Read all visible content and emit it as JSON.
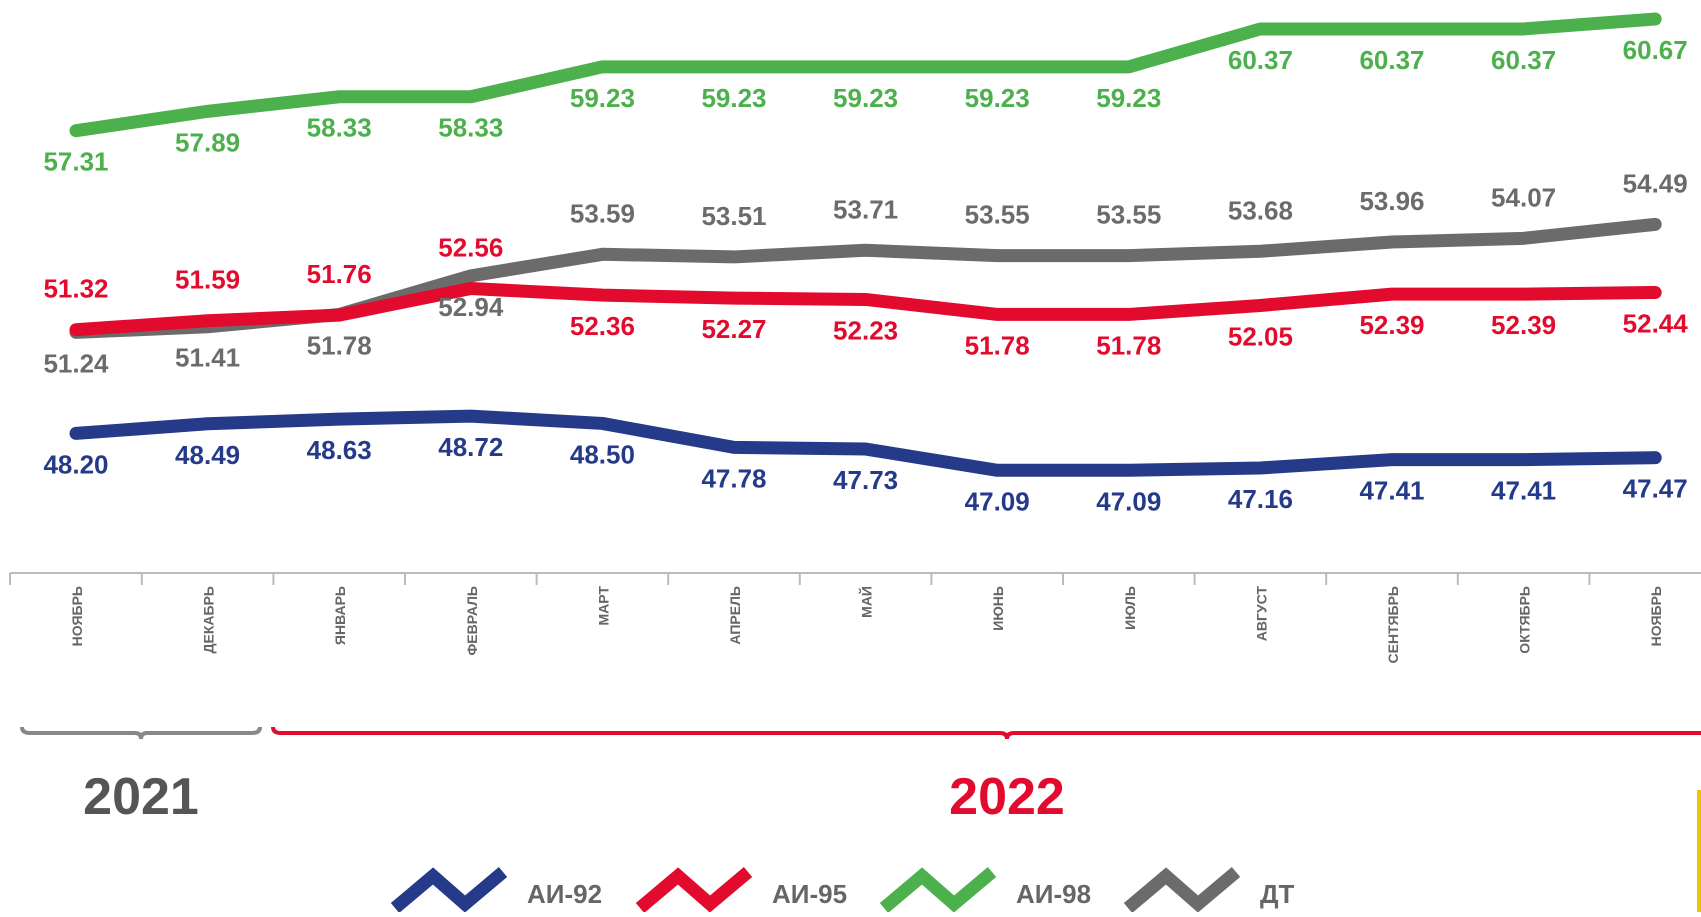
{
  "chart_data": {
    "type": "line",
    "categories": [
      "НОЯБРЬ",
      "ДЕКАБРЬ",
      "ЯНВАРЬ",
      "ФЕВРАЛЬ",
      "МАРТ",
      "АПРЕЛЬ",
      "МАЙ",
      "ИЮНЬ",
      "ИЮЛЬ",
      "АВГУСТ",
      "СЕНТЯБРЬ",
      "ОКТЯБРЬ",
      "НОЯБРЬ"
    ],
    "series": [
      {
        "name": "АИ-92",
        "color": "#263a8a",
        "values": [
          48.2,
          48.49,
          48.63,
          48.72,
          48.5,
          47.78,
          47.73,
          47.09,
          47.09,
          47.16,
          47.41,
          47.41,
          47.47
        ],
        "value_labels": [
          "48.20",
          "48.49",
          "48.63",
          "48.72",
          "48.50",
          "47.78",
          "47.73",
          "47.09",
          "47.09",
          "47.16",
          "47.41",
          "47.41",
          "47.47"
        ]
      },
      {
        "name": "АИ-95",
        "color": "#e30b2d",
        "values": [
          51.32,
          51.59,
          51.76,
          52.56,
          52.36,
          52.27,
          52.23,
          51.78,
          51.78,
          52.05,
          52.39,
          52.39,
          52.44
        ],
        "value_labels": [
          "51.32",
          "51.59",
          "51.76",
          "52.56",
          "52.36",
          "52.27",
          "52.23",
          "51.78",
          "51.78",
          "52.05",
          "52.39",
          "52.39",
          "52.44"
        ]
      },
      {
        "name": "АИ-98",
        "color": "#4cb04c",
        "values": [
          57.31,
          57.89,
          58.33,
          58.33,
          59.23,
          59.23,
          59.23,
          59.23,
          59.23,
          60.37,
          60.37,
          60.37,
          60.67
        ],
        "value_labels": [
          "57.31",
          "57.89",
          "58.33",
          "58.33",
          "59.23",
          "59.23",
          "59.23",
          "59.23",
          "59.23",
          "60.37",
          "60.37",
          "60.37",
          "60.67"
        ]
      },
      {
        "name": "ДТ",
        "color": "#6b6b6b",
        "values": [
          51.24,
          51.41,
          51.78,
          52.94,
          53.59,
          53.51,
          53.71,
          53.55,
          53.55,
          53.68,
          53.96,
          54.07,
          54.49
        ],
        "value_labels": [
          "51.24",
          "51.41",
          "51.78",
          "52.94",
          "53.59",
          "53.51",
          "53.71",
          "53.55",
          "53.55",
          "53.68",
          "53.96",
          "54.07",
          "54.49"
        ]
      }
    ],
    "ylim": [
      44,
      61
    ],
    "year_labels": [
      {
        "text": "2021",
        "color": "#555555"
      },
      {
        "text": "2022",
        "color": "#e30b2d"
      }
    ]
  }
}
